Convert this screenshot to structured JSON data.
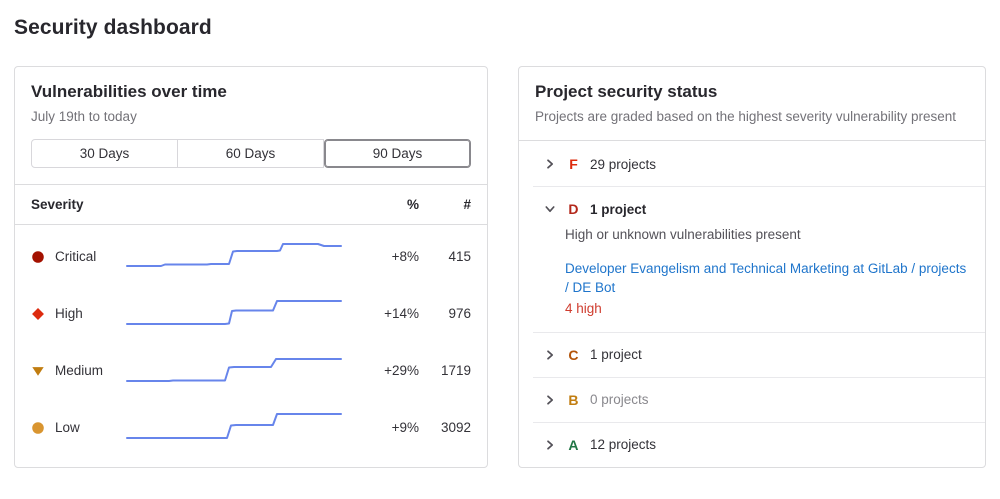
{
  "page": {
    "title": "Security dashboard"
  },
  "vuln_card": {
    "title": "Vulnerabilities over time",
    "subtitle": "July 19th to today",
    "time_ranges": [
      {
        "label": "30 Days",
        "selected": false
      },
      {
        "label": "60 Days",
        "selected": false
      },
      {
        "label": "90 Days",
        "selected": true
      }
    ],
    "columns": {
      "severity": "Severity",
      "percent": "%",
      "count": "#"
    },
    "sparkline_color": "#6785eb",
    "rows": [
      {
        "severity": "Critical",
        "icon": "severity-critical-icon",
        "icon_shape": "circle",
        "icon_color": "#a31100",
        "percent": "+8%",
        "count": "415",
        "sparkline": [
          [
            2,
            27
          ],
          [
            36,
            27
          ],
          [
            40,
            25.5
          ],
          [
            82,
            25.5
          ],
          [
            86,
            25
          ],
          [
            104,
            25
          ],
          [
            108,
            12.5
          ],
          [
            112,
            12
          ],
          [
            152,
            12
          ],
          [
            155,
            11.5
          ],
          [
            158,
            5
          ],
          [
            193,
            5
          ],
          [
            199,
            7
          ],
          [
            216,
            7
          ]
        ]
      },
      {
        "severity": "High",
        "icon": "severity-high-icon",
        "icon_shape": "diamond",
        "icon_color": "#dd2b0e",
        "percent": "+14%",
        "count": "976",
        "sparkline": [
          [
            2,
            28
          ],
          [
            100,
            28
          ],
          [
            104,
            27.5
          ],
          [
            107,
            15
          ],
          [
            111,
            14.5
          ],
          [
            148,
            14.5
          ],
          [
            152,
            5
          ],
          [
            216,
            5
          ]
        ]
      },
      {
        "severity": "Medium",
        "icon": "severity-medium-icon",
        "icon_shape": "triangle-down",
        "icon_color": "#c17d10",
        "percent": "+29%",
        "count": "1719",
        "sparkline": [
          [
            2,
            28
          ],
          [
            44,
            28
          ],
          [
            48,
            27.5
          ],
          [
            100,
            27.5
          ],
          [
            104,
            14.5
          ],
          [
            109,
            14
          ],
          [
            146,
            14
          ],
          [
            151,
            6
          ],
          [
            216,
            6
          ]
        ]
      },
      {
        "severity": "Low",
        "icon": "severity-low-icon",
        "icon_shape": "circle",
        "icon_color": "#d99530",
        "percent": "+9%",
        "count": "3092",
        "sparkline": [
          [
            2,
            28
          ],
          [
            102,
            28
          ],
          [
            106,
            15.5
          ],
          [
            111,
            15
          ],
          [
            148,
            15
          ],
          [
            152,
            4
          ],
          [
            216,
            4
          ]
        ]
      }
    ]
  },
  "status_card": {
    "title": "Project security status",
    "subtitle": "Projects are graded based on the highest severity vulnerability present",
    "grades": [
      {
        "letter": "F",
        "color": "#dd2b0e",
        "count_label": "29 projects",
        "expanded": false,
        "muted": false
      },
      {
        "letter": "D",
        "color": "#b3271a",
        "count_label": "1 project",
        "expanded": true,
        "muted": false,
        "description": "High or unknown vulnerabilities present",
        "project_link": "Developer Evangelism and Technical Marketing at GitLab / projects / DE Bot",
        "vuln_count": "4 high",
        "vuln_count_color": "#cf3c2e"
      },
      {
        "letter": "C",
        "color": "#b3540a",
        "count_label": "1 project",
        "expanded": false,
        "muted": false
      },
      {
        "letter": "B",
        "color": "#c17d10",
        "count_label": "0 projects",
        "expanded": false,
        "muted": true
      },
      {
        "letter": "A",
        "color": "#217645",
        "count_label": "12 projects",
        "expanded": false,
        "muted": false
      }
    ]
  },
  "chart_data": {
    "type": "line",
    "title": "Vulnerabilities over time sparklines",
    "series": [
      {
        "name": "Critical",
        "trend": "+8%",
        "latest": 415
      },
      {
        "name": "High",
        "trend": "+14%",
        "latest": 976
      },
      {
        "name": "Medium",
        "trend": "+29%",
        "latest": 1719
      },
      {
        "name": "Low",
        "trend": "+9%",
        "latest": 3092
      }
    ]
  }
}
